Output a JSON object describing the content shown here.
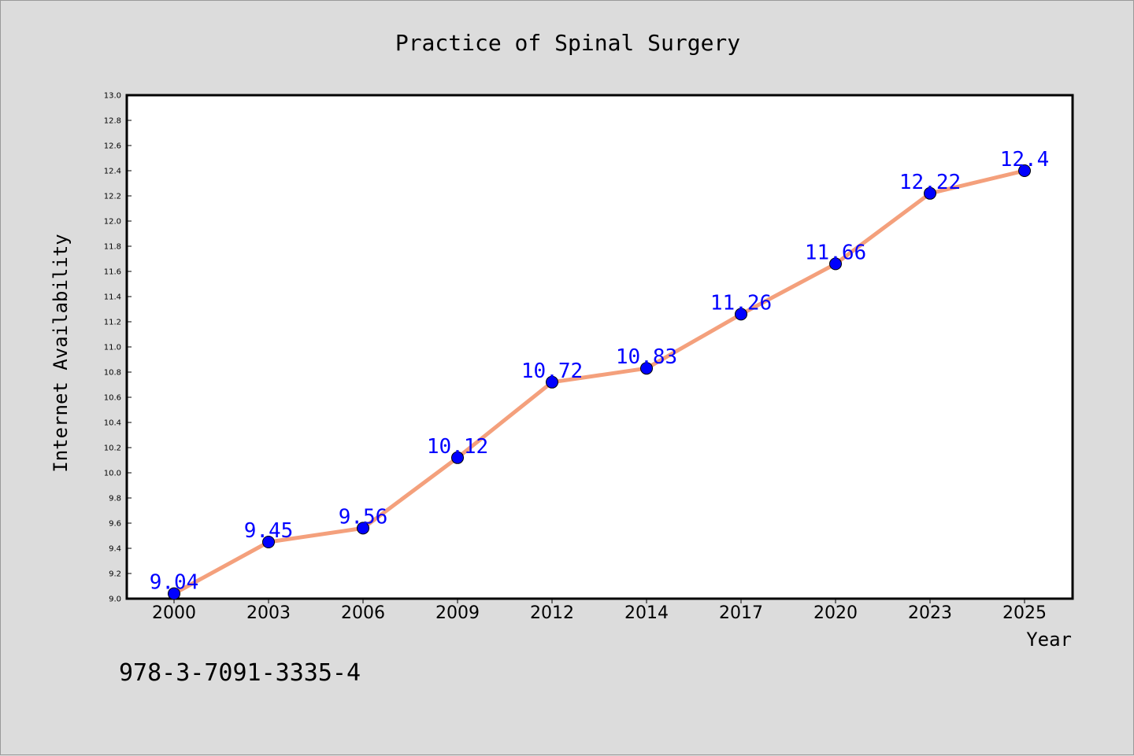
{
  "caption": "978-3-7091-3335-4",
  "colors": {
    "line": "#f4a07c",
    "marker": "#0000ff",
    "label": "#0000ff",
    "background": "#dcdcdc",
    "plot_background": "#ffffff"
  },
  "chart_data": {
    "type": "line",
    "title": "Practice of Spinal Surgery",
    "xlabel": "Year",
    "ylabel": "Internet Availability",
    "categories": [
      "2000",
      "2003",
      "2006",
      "2009",
      "2012",
      "2014",
      "2017",
      "2020",
      "2023",
      "2025"
    ],
    "series": [
      {
        "values": [
          9.04,
          9.45,
          9.56,
          10.12,
          10.72,
          10.83,
          11.26,
          11.66,
          12.22,
          12.4
        ]
      }
    ],
    "data_labels": [
      "9.04",
      "9.45",
      "9.56",
      "10.12",
      "10.72",
      "10.83",
      "11.26",
      "11.66",
      "12.22",
      "12.4"
    ],
    "ylim": [
      9.0,
      13.0
    ],
    "yticks": [
      "9.0",
      "9.2",
      "9.4",
      "9.6",
      "9.8",
      "10.0",
      "10.2",
      "10.4",
      "10.6",
      "10.8",
      "11.0",
      "11.2",
      "11.4",
      "11.6",
      "11.8",
      "12.0",
      "12.2",
      "12.4",
      "12.6",
      "12.8",
      "13.0"
    ],
    "grid": false,
    "legend": "none"
  }
}
